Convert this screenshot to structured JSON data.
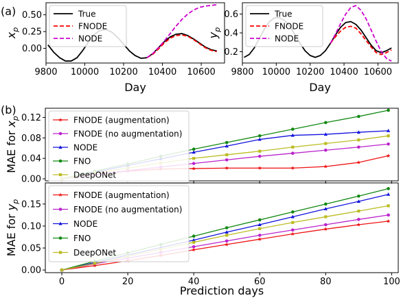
{
  "panel_labels": {
    "a": "(a)",
    "b": "(b)"
  },
  "chart_data": [
    {
      "type": "line",
      "ylabel_main": "x",
      "ylabel_sub": "p",
      "xlabel": "Day",
      "xlim": [
        9800,
        10720
      ],
      "ylim": [
        -0.22,
        0.68
      ],
      "xticks": [
        9800,
        10000,
        10200,
        10400,
        10600
      ],
      "yticks": [
        0.0,
        0.25,
        0.5
      ],
      "ytick_labels": [
        "0.00",
        "0.25",
        "0.50"
      ],
      "legend_position": "upper-left",
      "grid": false,
      "series": [
        {
          "name": "True",
          "color": "#000000",
          "dash": "solid",
          "x": [
            9810,
            9840,
            9870,
            9900,
            9930,
            9960,
            9990,
            10020,
            10050,
            10080,
            10110,
            10140,
            10170,
            10200,
            10230,
            10260,
            10290,
            10320,
            10350,
            10380,
            10410,
            10440,
            10470,
            10500,
            10530,
            10560,
            10590,
            10620,
            10650,
            10680
          ],
          "y": [
            0.05,
            -0.06,
            -0.14,
            -0.19,
            -0.19,
            -0.14,
            -0.03,
            0.1,
            0.21,
            0.27,
            0.28,
            0.24,
            0.16,
            0.06,
            -0.04,
            -0.11,
            -0.15,
            -0.14,
            -0.08,
            0.01,
            0.1,
            0.17,
            0.21,
            0.22,
            0.19,
            0.14,
            0.08,
            0.02,
            -0.02,
            -0.04
          ]
        },
        {
          "name": "FNODE",
          "color": "#ff0000",
          "dash": "dashed",
          "x": [
            10320,
            10350,
            10380,
            10410,
            10440,
            10470,
            10500,
            10530,
            10560,
            10590,
            10620,
            10650,
            10680
          ],
          "y": [
            -0.14,
            -0.09,
            -0.01,
            0.08,
            0.15,
            0.19,
            0.2,
            0.18,
            0.13,
            0.07,
            0.01,
            -0.03,
            -0.05
          ]
        },
        {
          "name": "NODE",
          "color": "#cc00cc",
          "dash": "dashed",
          "x": [
            10320,
            10350,
            10380,
            10410,
            10440,
            10470,
            10500,
            10530,
            10560,
            10590,
            10620,
            10650,
            10680
          ],
          "y": [
            -0.14,
            -0.08,
            0.01,
            0.11,
            0.22,
            0.33,
            0.43,
            0.51,
            0.57,
            0.61,
            0.63,
            0.64,
            0.65
          ]
        }
      ]
    },
    {
      "type": "line",
      "ylabel_main": "y",
      "ylabel_sub": "p",
      "xlabel": "Day",
      "xlim": [
        9800,
        10720
      ],
      "ylim": [
        0.08,
        0.72
      ],
      "xticks": [
        9800,
        10000,
        10200,
        10400,
        10600
      ],
      "yticks": [
        0.2,
        0.4,
        0.6
      ],
      "ytick_labels": [
        "0.2",
        "0.4",
        "0.6"
      ],
      "legend_position": "upper-left",
      "grid": false,
      "series": [
        {
          "name": "True",
          "color": "#000000",
          "dash": "solid",
          "x": [
            9810,
            9840,
            9870,
            9900,
            9930,
            9960,
            9990,
            10020,
            10050,
            10080,
            10110,
            10140,
            10170,
            10200,
            10230,
            10260,
            10290,
            10320,
            10350,
            10380,
            10410,
            10440,
            10470,
            10500,
            10530,
            10560,
            10590,
            10620,
            10650,
            10680
          ],
          "y": [
            0.14,
            0.17,
            0.24,
            0.34,
            0.44,
            0.52,
            0.56,
            0.56,
            0.53,
            0.47,
            0.38,
            0.29,
            0.21,
            0.16,
            0.14,
            0.16,
            0.21,
            0.29,
            0.38,
            0.46,
            0.51,
            0.52,
            0.49,
            0.43,
            0.35,
            0.27,
            0.21,
            0.19,
            0.21,
            0.24
          ]
        },
        {
          "name": "FNODE",
          "color": "#ff0000",
          "dash": "dashed",
          "x": [
            10320,
            10350,
            10380,
            10410,
            10440,
            10470,
            10500,
            10530,
            10560,
            10590,
            10620,
            10650,
            10680
          ],
          "y": [
            0.29,
            0.36,
            0.42,
            0.46,
            0.47,
            0.45,
            0.39,
            0.32,
            0.25,
            0.19,
            0.17,
            0.19,
            0.22
          ]
        },
        {
          "name": "NODE",
          "color": "#cc00cc",
          "dash": "dashed",
          "x": [
            10320,
            10350,
            10380,
            10410,
            10440,
            10470,
            10500,
            10530,
            10560,
            10590,
            10620,
            10650,
            10680
          ],
          "y": [
            0.29,
            0.39,
            0.5,
            0.6,
            0.67,
            0.69,
            0.64,
            0.55,
            0.43,
            0.31,
            0.2,
            0.13,
            0.1
          ]
        }
      ]
    },
    {
      "type": "line",
      "ylabel_main": "MAE for x",
      "ylabel_sub": "p",
      "xlabel": "",
      "xlim": [
        -5,
        102
      ],
      "ylim": [
        -0.004,
        0.138
      ],
      "xticks": [
        0,
        20,
        40,
        60,
        80,
        100
      ],
      "yticks": [
        0.0,
        0.04,
        0.08,
        0.12
      ],
      "ytick_labels": [
        "0.00",
        "0.04",
        "0.08",
        "0.12"
      ],
      "legend_position": "upper-left",
      "grid": false,
      "series": [
        {
          "name": "FNODE (augmentation)",
          "color": "#ee1111",
          "marker": "star",
          "x": [
            0,
            10,
            20,
            30,
            40,
            50,
            60,
            70,
            80,
            90,
            99
          ],
          "y": [
            0.0,
            0.008,
            0.015,
            0.019,
            0.02,
            0.021,
            0.021,
            0.021,
            0.024,
            0.032,
            0.045
          ]
        },
        {
          "name": "FNODE (no augmentation)",
          "color": "#bb22cc",
          "marker": "circle",
          "x": [
            0,
            10,
            20,
            30,
            40,
            50,
            60,
            70,
            80,
            90,
            99
          ],
          "y": [
            0.0,
            0.008,
            0.016,
            0.023,
            0.03,
            0.037,
            0.044,
            0.05,
            0.056,
            0.062,
            0.068
          ]
        },
        {
          "name": "NODE",
          "color": "#1111dd",
          "marker": "triangle",
          "x": [
            0,
            10,
            20,
            30,
            40,
            50,
            60,
            70,
            80,
            90,
            99
          ],
          "y": [
            0.0,
            0.013,
            0.026,
            0.039,
            0.052,
            0.064,
            0.077,
            0.085,
            0.087,
            0.091,
            0.094
          ]
        },
        {
          "name": "FNO",
          "color": "#118811",
          "marker": "circle",
          "x": [
            0,
            10,
            20,
            30,
            40,
            50,
            60,
            70,
            80,
            90,
            99
          ],
          "y": [
            0.0,
            0.015,
            0.029,
            0.044,
            0.058,
            0.071,
            0.084,
            0.097,
            0.11,
            0.122,
            0.134
          ]
        },
        {
          "name": "DeepONet",
          "color": "#bbbb22",
          "marker": "square",
          "x": [
            0,
            10,
            20,
            30,
            40,
            50,
            60,
            70,
            80,
            90,
            99
          ],
          "y": [
            0.0,
            0.011,
            0.021,
            0.031,
            0.04,
            0.047,
            0.054,
            0.062,
            0.069,
            0.076,
            0.084
          ]
        }
      ]
    },
    {
      "type": "line",
      "ylabel_main": "MAE for y",
      "ylabel_sub": "p",
      "xlabel": "Prediction days",
      "xlim": [
        -5,
        102
      ],
      "ylim": [
        -0.006,
        0.198
      ],
      "xticks": [
        0,
        20,
        40,
        60,
        80,
        100
      ],
      "yticks": [
        0.0,
        0.05,
        0.1,
        0.15
      ],
      "ytick_labels": [
        "0.00",
        "0.05",
        "0.10",
        "0.15"
      ],
      "legend_position": "upper-left",
      "grid": false,
      "series": [
        {
          "name": "FNODE (augmentation)",
          "color": "#ee1111",
          "marker": "star",
          "x": [
            0,
            10,
            20,
            30,
            40,
            50,
            60,
            70,
            80,
            90,
            99
          ],
          "y": [
            0.0,
            0.01,
            0.021,
            0.033,
            0.046,
            0.058,
            0.07,
            0.082,
            0.093,
            0.103,
            0.111
          ]
        },
        {
          "name": "FNODE (no augmentation)",
          "color": "#bb22cc",
          "marker": "circle",
          "x": [
            0,
            10,
            20,
            30,
            40,
            50,
            60,
            70,
            80,
            90,
            99
          ],
          "y": [
            0.0,
            0.014,
            0.027,
            0.04,
            0.053,
            0.066,
            0.079,
            0.091,
            0.103,
            0.115,
            0.125
          ]
        },
        {
          "name": "NODE",
          "color": "#1111dd",
          "marker": "triangle",
          "x": [
            0,
            10,
            20,
            30,
            40,
            50,
            60,
            70,
            80,
            90,
            99
          ],
          "y": [
            0.0,
            0.017,
            0.034,
            0.051,
            0.068,
            0.086,
            0.103,
            0.121,
            0.139,
            0.156,
            0.172
          ]
        },
        {
          "name": "FNO",
          "color": "#118811",
          "marker": "circle",
          "x": [
            0,
            10,
            20,
            30,
            40,
            50,
            60,
            70,
            80,
            90,
            99
          ],
          "y": [
            0.0,
            0.02,
            0.039,
            0.058,
            0.077,
            0.096,
            0.114,
            0.132,
            0.15,
            0.168,
            0.185
          ]
        },
        {
          "name": "DeepONet",
          "color": "#bbbb22",
          "marker": "square",
          "x": [
            0,
            10,
            20,
            30,
            40,
            50,
            60,
            70,
            80,
            90,
            99
          ],
          "y": [
            0.0,
            0.015,
            0.031,
            0.047,
            0.063,
            0.079,
            0.094,
            0.108,
            0.121,
            0.134,
            0.146
          ]
        }
      ]
    }
  ]
}
